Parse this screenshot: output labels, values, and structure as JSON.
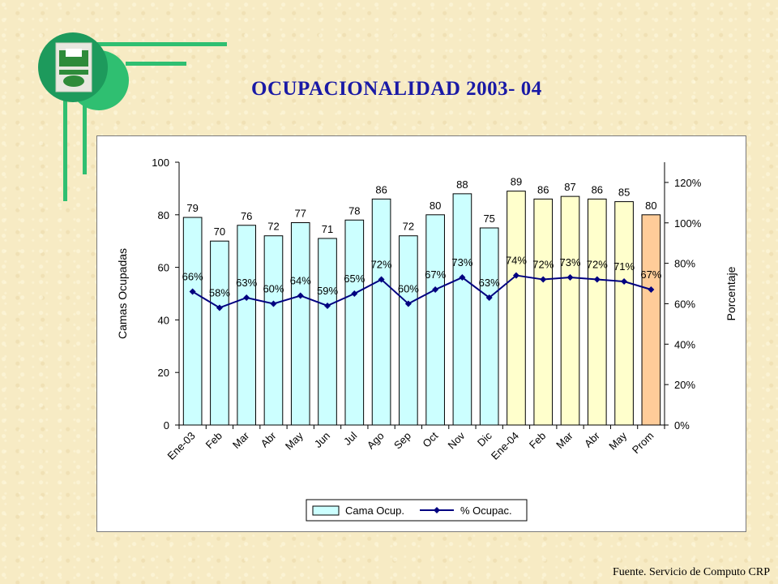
{
  "slide": {
    "title": "OCUPACIONALIDAD 2003- 04",
    "source": "Fuente. Servicio de Computo CRP"
  },
  "colors": {
    "bar_2003": "#ccffff",
    "bar_2004": "#ffffcc",
    "bar_prom": "#ffcc99",
    "line": "#000080",
    "title": "#1a1aa6",
    "accent_green": "#2fbf71"
  },
  "icons": {
    "logo": "bed-emblem-icon"
  },
  "chart_data": {
    "type": "bar",
    "categories": [
      "Ene-03",
      "Feb",
      "Mar",
      "Abr",
      "May",
      "Jun",
      "Jul",
      "Ago",
      "Sep",
      "Oct",
      "Nov",
      "Dic",
      "Ene-04",
      "Feb",
      "Mar",
      "Abr",
      "May",
      "Prom"
    ],
    "series": [
      {
        "name": "Cama Ocup.",
        "type": "bar",
        "axis": "left",
        "values": [
          79,
          70,
          76,
          72,
          77,
          71,
          78,
          86,
          72,
          80,
          88,
          75,
          89,
          86,
          87,
          86,
          85,
          80
        ],
        "labels": [
          "79",
          "70",
          "76",
          "72",
          "77",
          "71",
          "78",
          "86",
          "72",
          "80",
          "88",
          "75",
          "89",
          "86",
          "87",
          "86",
          "85",
          "80"
        ]
      },
      {
        "name": "% Ocupac.",
        "type": "line",
        "axis": "right",
        "values": [
          66,
          58,
          63,
          60,
          64,
          59,
          65,
          72,
          60,
          67,
          73,
          63,
          74,
          72,
          73,
          72,
          71,
          67
        ],
        "labels": [
          "66%",
          "58%",
          "63%",
          "60%",
          "64%",
          "59%",
          "65%",
          "72%",
          "60%",
          "67%",
          "73%",
          "63%",
          "74%",
          "72%",
          "73%",
          "72%",
          "71%",
          "67%"
        ]
      }
    ],
    "ylabel": "Camas Ocupadas",
    "ylim": [
      0,
      100
    ],
    "yticks": [
      "0",
      "20",
      "40",
      "60",
      "80",
      "100"
    ],
    "y2label": "Porcentaje",
    "y2lim": [
      0,
      130
    ],
    "y2ticks": [
      "0%",
      "20%",
      "40%",
      "60%",
      "80%",
      "100%",
      "120%"
    ],
    "legend_position": "bottom"
  }
}
